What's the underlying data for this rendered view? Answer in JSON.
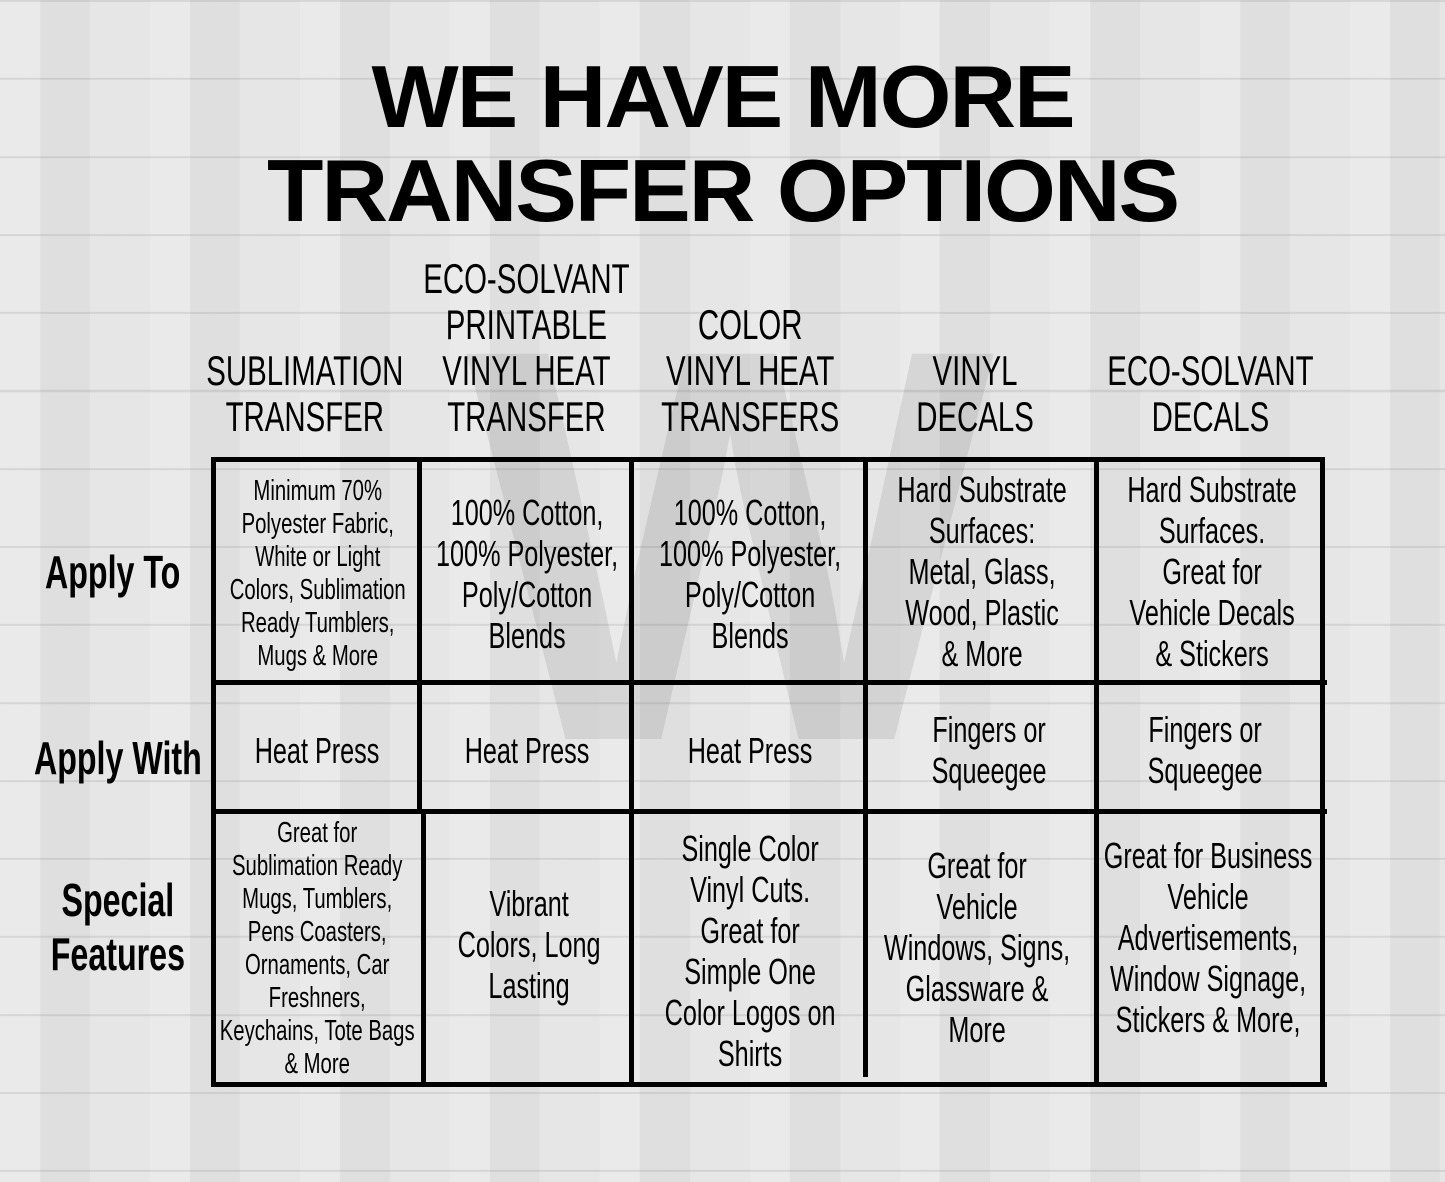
{
  "title": "WE HAVE MORE\nTRANSFER OPTIONS",
  "columns": [
    "SUBLIMATION\nTRANSFER",
    "ECO-SOLVANT\nPRINTABLE\nVINYL HEAT\nTRANSFER",
    "COLOR\nVINYL HEAT\nTRANSFERS",
    "VINYL\nDECALS",
    "ECO-SOLVANT\nDECALS"
  ],
  "rows": [
    {
      "label": "Apply To",
      "cells": [
        "Minimum 70%\nPolyester Fabric,\nWhite or Light\nColors, Sublimation\nReady Tumblers,\nMugs & More",
        "100% Cotton,\n100% Polyester,\nPoly/Cotton\nBlends",
        "100% Cotton,\n100% Polyester,\nPoly/Cotton\nBlends",
        "Hard Substrate\nSurfaces:\nMetal, Glass,\nWood, Plastic\n& More",
        "Hard Substrate\nSurfaces.\nGreat for\nVehicle Decals\n& Stickers"
      ]
    },
    {
      "label": "Apply With",
      "cells": [
        "Heat Press",
        "Heat Press",
        "Heat Press",
        "Fingers or\nSqueegee",
        "Fingers or\nSqueegee"
      ]
    },
    {
      "label": "Special\nFeatures",
      "cells": [
        "Great for\nSublimation Ready\nMugs, Tumblers,\nPens Coasters,\nOrnaments, Car\nFreshners,\nKeychains, Tote Bags\n& More",
        "Vibrant\nColors, Long\nLasting",
        "Single Color\nVinyl Cuts.\nGreat for\nSimple One\nColor Logos on\nShirts",
        "Great for\nVehicle\nWindows, Signs,\nGlassware &\nMore",
        "Great for Business\nVehicle\nAdvertisements,\nWindow Signage,\nStickers & More,"
      ]
    }
  ],
  "colors": {
    "background": "#e3e3e3",
    "grid": "#000000"
  }
}
